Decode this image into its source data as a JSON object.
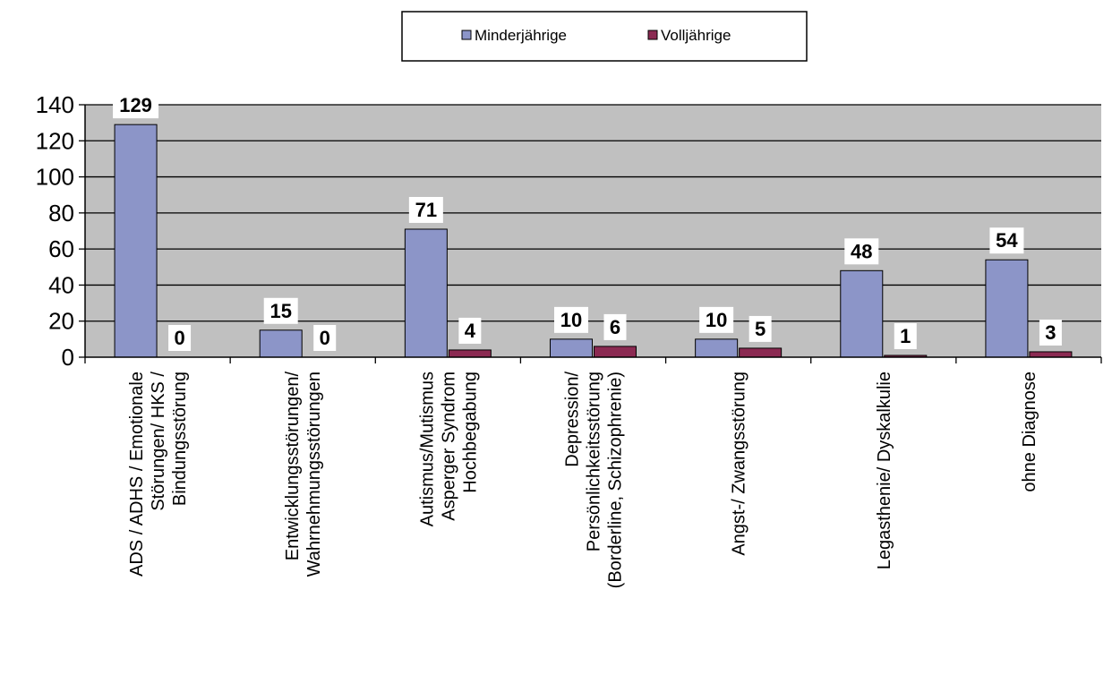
{
  "chart_data": {
    "type": "bar",
    "categories": [
      [
        "ADS / ADHS / Emotionale",
        "Störungen/ HKS /",
        "Bindungsstörung"
      ],
      [
        "Entwicklungsstörungen/",
        "Wahrnehmungsstörungen"
      ],
      [
        "Autismus/Mutismus",
        "Asperger Syndrom",
        "Hochbegabung"
      ],
      [
        "Depression/",
        "Persönlichkeitsstörung",
        "(Borderline, Schizophrenie)"
      ],
      [
        "Angst-/ Zwangsstörung"
      ],
      [
        "Legasthenie/ Dyskalkulie"
      ],
      [
        "ohne Diagnose"
      ]
    ],
    "series": [
      {
        "name": "Minderjährige",
        "values": [
          129,
          15,
          71,
          10,
          10,
          48,
          54
        ],
        "color": "#8c95c8"
      },
      {
        "name": "Volljährige",
        "values": [
          0,
          0,
          4,
          6,
          5,
          1,
          3
        ],
        "color": "#8b2a52"
      }
    ],
    "ylim": [
      0,
      140
    ],
    "yticks": [
      0,
      20,
      40,
      60,
      80,
      100,
      120,
      140
    ],
    "grid": true,
    "plot_background": "#c0c0c0",
    "legend_position": "top-center",
    "data_labels": true
  }
}
